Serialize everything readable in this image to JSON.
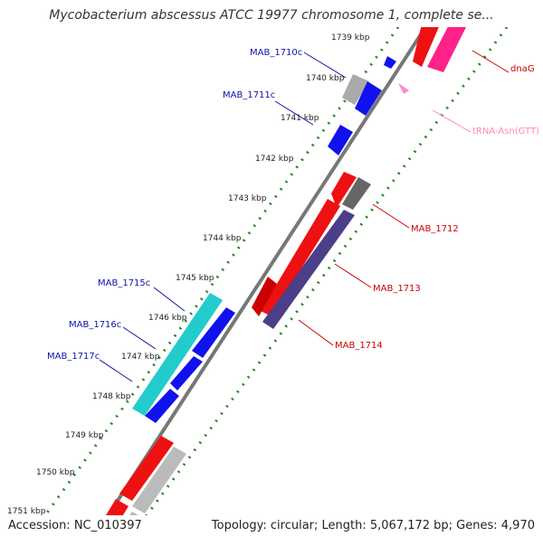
{
  "map": {
    "title": "Mycobacterium abscessus ATCC 19977 chromosome 1, complete se...",
    "accession": "Accession: NC_010397",
    "summary": "Topology: circular; Length: 5,067,172 bp; Genes: 4,970"
  },
  "ticks": [
    "1739 kbp",
    "1740 kbp",
    "1741 kbp",
    "1742 kbp",
    "1743 kbp",
    "1744 kbp",
    "1745 kbp",
    "1746 kbp",
    "1747 kbp",
    "1748 kbp",
    "1749 kbp",
    "1750 kbp",
    "1751 kbp"
  ],
  "labels": {
    "MAB_1710c": "MAB_1710c",
    "MAB_1711c": "MAB_1711c",
    "MAB_1715c": "MAB_1715c",
    "MAB_1716c": "MAB_1716c",
    "MAB_1717c": "MAB_1717c",
    "dnaG": "dnaG",
    "tRNA": "tRNA-Asn(GTT)",
    "MAB_1712": "MAB_1712",
    "MAB_1713": "MAB_1713",
    "MAB_1714": "MAB_1714"
  },
  "colors": {
    "red": "#ee1111",
    "pink": "#ff2288",
    "blue": "#1111ee",
    "navy": "#4a3f88",
    "cyan": "#22cccc",
    "gray": "#aaaaaa",
    "darkgray": "#666666",
    "dotted": "#228822",
    "label_blue": "#1111aa",
    "label_red": "#cc0000",
    "label_pink": "#ff88bb"
  }
}
